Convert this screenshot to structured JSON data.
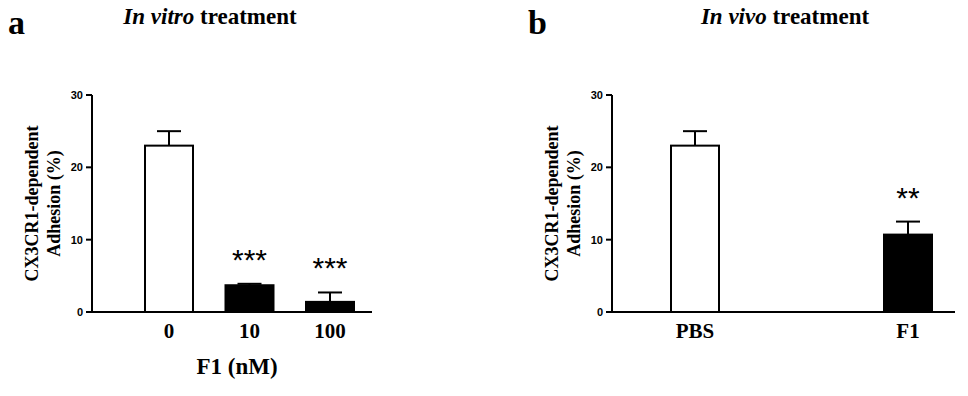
{
  "chart_data": [
    {
      "type": "bar",
      "panel": "a",
      "title": "In vitro treatment",
      "y_label": "CX3CR1-dependent Adhesion (%)",
      "x_label": "F1 (nM)",
      "categories": [
        "0",
        "10",
        "100"
      ],
      "values": [
        23,
        3.7,
        1.4
      ],
      "errors": [
        2.0,
        0.2,
        1.3
      ],
      "colors": [
        "#ffffff",
        "#000000",
        "#000000"
      ],
      "significance": [
        null,
        "***",
        "***"
      ],
      "ylim": [
        0,
        30
      ],
      "yticks": [
        0,
        10,
        20,
        30
      ]
    },
    {
      "type": "bar",
      "panel": "b",
      "title": "In vivo treatment",
      "y_label": "CX3CR1-dependent Adhesion (%)",
      "categories": [
        "PBS",
        "F1"
      ],
      "values": [
        23,
        10.7
      ],
      "errors": [
        2.0,
        1.8
      ],
      "colors": [
        "#ffffff",
        "#000000"
      ],
      "significance": [
        null,
        "**"
      ],
      "ylim": [
        0,
        30
      ],
      "yticks": [
        0,
        10,
        20,
        30
      ]
    }
  ]
}
